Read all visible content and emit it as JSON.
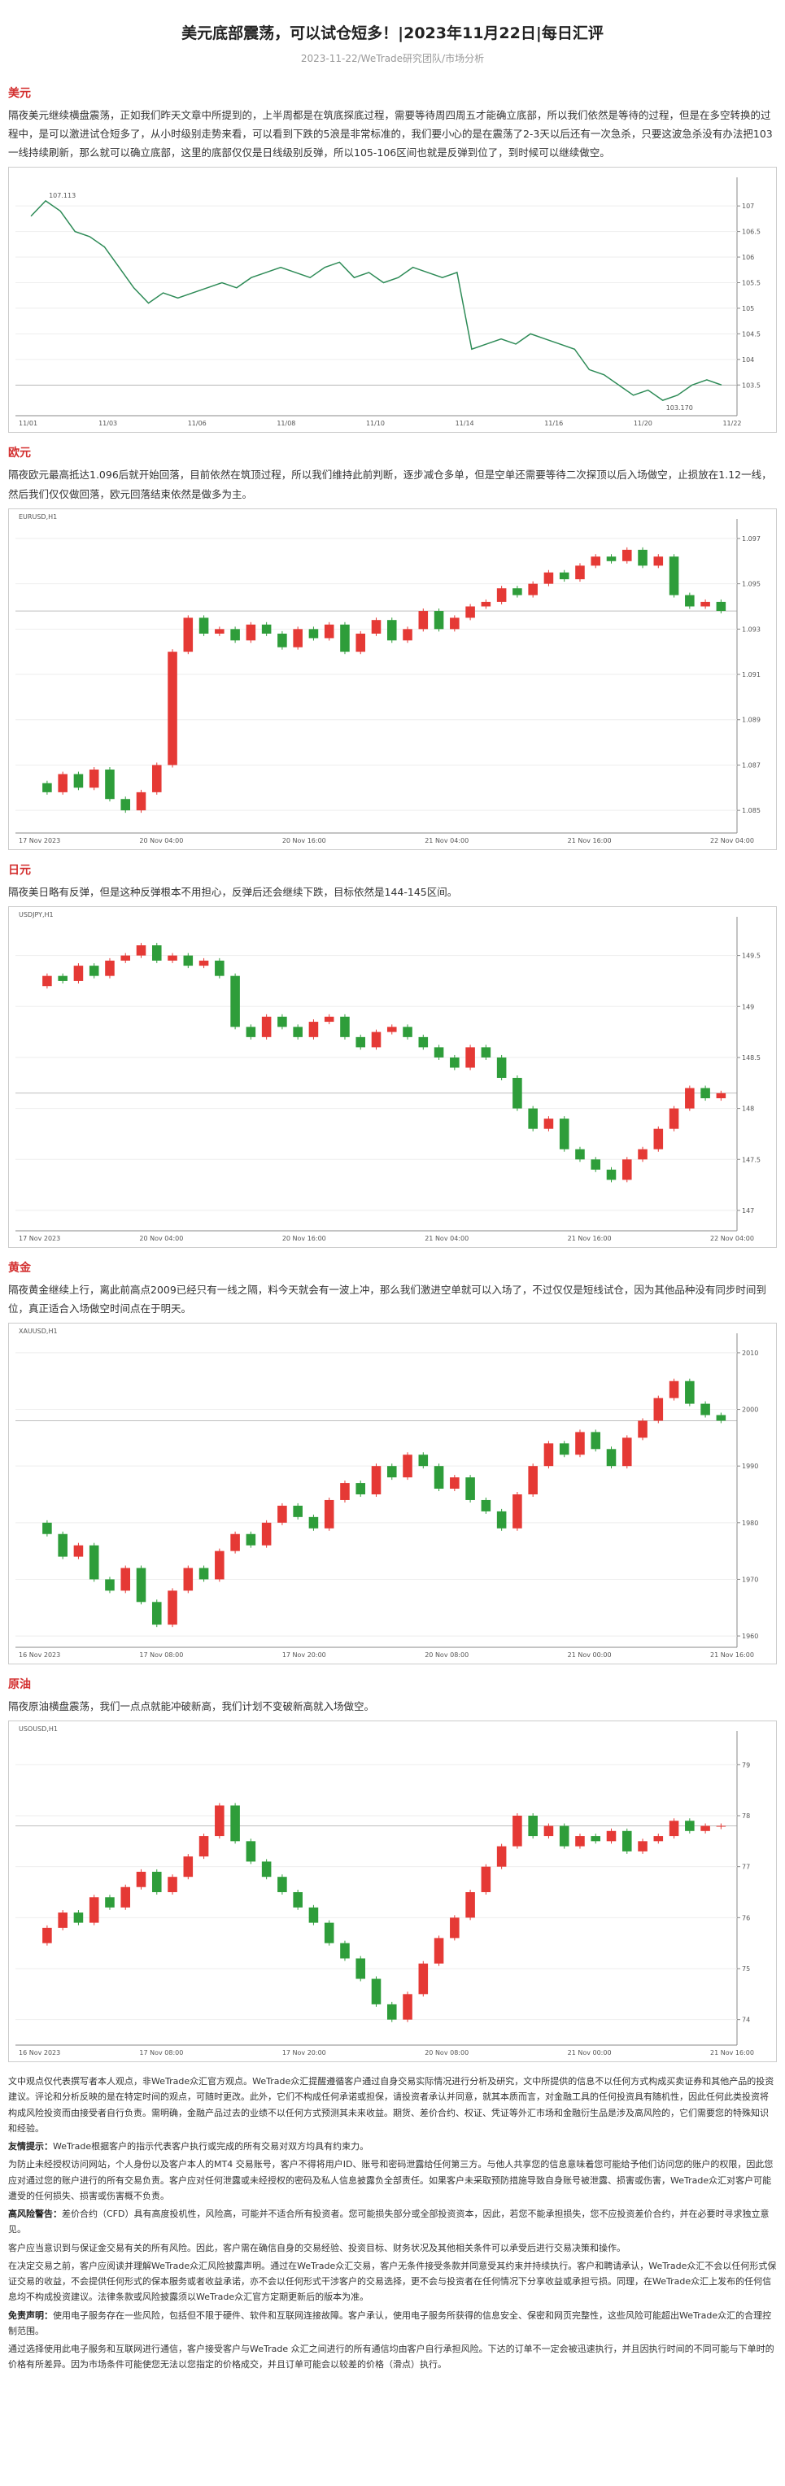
{
  "header": {
    "title": "美元底部震荡，可以试仓短多！|2023年11月22日|每日汇评",
    "subtitle": "2023-11-22/WeTrade研究团队/市场分析"
  },
  "sections": [
    {
      "heading": "美元",
      "text": "隔夜美元继续横盘震荡，正如我们昨天文章中所提到的，上半周都是在筑底探底过程，需要等待周四周五才能确立底部，所以我们依然是等待的过程，但是在多空转换的过程中，是可以激进试仓短多了，从小时级别走势来看，可以看到下跌的5浪是非常标准的，我们要小心的是在震荡了2-3天以后还有一次急杀，只要这波急杀没有办法把103一线持续刷新，那么就可以确立底部，这里的底部仅仅是日线级别反弹，所以105-106区间也就是反弹到位了，到时候可以继续做空。",
      "chart": {
        "type": "line",
        "color": "#2e8b57",
        "high_label": "107.113",
        "low_label": "103.170",
        "values": [
          106.8,
          107.1,
          106.9,
          106.5,
          106.4,
          106.2,
          105.8,
          105.4,
          105.1,
          105.3,
          105.2,
          105.3,
          105.4,
          105.5,
          105.4,
          105.6,
          105.7,
          105.8,
          105.7,
          105.6,
          105.8,
          105.9,
          105.6,
          105.7,
          105.5,
          105.6,
          105.8,
          105.7,
          105.6,
          105.7,
          104.2,
          104.3,
          104.4,
          104.3,
          104.5,
          104.4,
          104.3,
          104.2,
          103.8,
          103.7,
          103.5,
          103.3,
          103.4,
          103.2,
          103.3,
          103.5,
          103.6,
          103.5
        ],
        "ylim": [
          102.9,
          107.4
        ],
        "yticks": [
          103.5,
          104,
          104.5,
          105,
          105.5,
          106,
          106.5,
          107
        ],
        "xlabels": [
          "11/01",
          "11/03",
          "11/06",
          "11/08",
          "11/10",
          "11/14",
          "11/16",
          "11/20",
          "11/22"
        ]
      }
    },
    {
      "heading": "欧元",
      "text": "隔夜欧元最高抵达1.096后就开始回落，目前依然在筑顶过程，所以我们维持此前判断，逐步减仓多单，但是空单还需要等待二次探顶以后入场做空，止损放在1.12一线，然后我们仅仅做回落，欧元回落结束依然是做多为主。",
      "chart": {
        "type": "candlestick",
        "label": "EURUSD,H1",
        "values": [
          1.0862,
          1.0858,
          1.0866,
          1.086,
          1.0868,
          1.0855,
          1.085,
          1.0858,
          1.087,
          1.092,
          1.0935,
          1.0928,
          1.093,
          1.0925,
          1.0932,
          1.0928,
          1.0922,
          1.093,
          1.0926,
          1.0932,
          1.092,
          1.0928,
          1.0934,
          1.0925,
          1.093,
          1.0938,
          1.093,
          1.0935,
          1.094,
          1.0942,
          1.0948,
          1.0945,
          1.095,
          1.0955,
          1.0952,
          1.0958,
          1.0962,
          1.096,
          1.0965,
          1.0958,
          1.0962,
          1.0945,
          1.094,
          1.0942,
          1.0938
        ],
        "ylim": [
          1.084,
          1.0975
        ],
        "yticks": [
          1.085,
          1.087,
          1.089,
          1.091,
          1.093,
          1.095,
          1.097
        ],
        "xlabels": [
          "17 Nov 2023",
          "20 Nov 04:00",
          "20 Nov 16:00",
          "21 Nov 04:00",
          "21 Nov 16:00",
          "22 Nov 04:00"
        ]
      }
    },
    {
      "heading": "日元",
      "text": "隔夜美日略有反弹，但是这种反弹根本不用担心，反弹后还会继续下跌，目标依然是144-145区间。",
      "chart": {
        "type": "candlestick",
        "label": "USDJPY,H1",
        "values": [
          149.2,
          149.3,
          149.25,
          149.4,
          149.3,
          149.45,
          149.5,
          149.6,
          149.45,
          149.5,
          149.4,
          149.45,
          149.3,
          148.8,
          148.7,
          148.9,
          148.8,
          148.7,
          148.85,
          148.9,
          148.7,
          148.6,
          148.75,
          148.8,
          148.7,
          148.6,
          148.5,
          148.4,
          148.6,
          148.5,
          148.3,
          148,
          147.8,
          147.9,
          147.6,
          147.5,
          147.4,
          147.3,
          147.5,
          147.6,
          147.8,
          148,
          148.2,
          148.1,
          148.15
        ],
        "ylim": [
          146.8,
          149.8
        ],
        "yticks": [
          147,
          147.5,
          148,
          148.5,
          149,
          149.5
        ],
        "xlabels": [
          "17 Nov 2023",
          "20 Nov 04:00",
          "20 Nov 16:00",
          "21 Nov 04:00",
          "21 Nov 16:00",
          "22 Nov 04:00"
        ]
      }
    },
    {
      "heading": "黄金",
      "text": "隔夜黄金继续上行，离此前高点2009已经只有一线之隔，料今天就会有一波上冲，那么我们激进空单就可以入场了，不过仅仅是短线试仓，因为其他品种没有同步时间到位，真正适合入场做空时间点在于明天。",
      "chart": {
        "type": "candlestick",
        "label": "XAUUSD,H1",
        "values": [
          1980,
          1978,
          1974,
          1976,
          1970,
          1968,
          1972,
          1966,
          1962,
          1968,
          1972,
          1970,
          1975,
          1978,
          1976,
          1980,
          1983,
          1981,
          1979,
          1984,
          1987,
          1985,
          1990,
          1988,
          1992,
          1990,
          1986,
          1988,
          1984,
          1982,
          1979,
          1985,
          1990,
          1994,
          1992,
          1996,
          1993,
          1990,
          1995,
          1998,
          2002,
          2005,
          2001,
          1999,
          1998
        ],
        "ylim": [
          1958,
          2012
        ],
        "yticks": [
          1960,
          1970,
          1980,
          1990,
          2000,
          2010
        ],
        "xlabels": [
          "16 Nov 2023",
          "17 Nov 08:00",
          "17 Nov 20:00",
          "20 Nov 08:00",
          "21 Nov 00:00",
          "21 Nov 16:00"
        ]
      }
    },
    {
      "heading": "原油",
      "text": "隔夜原油横盘震荡，我们一点点就能冲破新高，我们计划不变破新高就入场做空。",
      "chart": {
        "type": "candlestick",
        "label": "USOUSD,H1",
        "values": [
          75.5,
          75.8,
          76.1,
          75.9,
          76.4,
          76.2,
          76.6,
          76.9,
          76.5,
          76.8,
          77.2,
          77.6,
          78.2,
          77.5,
          77.1,
          76.8,
          76.5,
          76.2,
          75.9,
          75.5,
          75.2,
          74.8,
          74.3,
          74,
          74.5,
          75.1,
          75.6,
          76,
          76.5,
          77,
          77.4,
          78,
          77.6,
          77.8,
          77.4,
          77.6,
          77.5,
          77.7,
          77.3,
          77.5,
          77.6,
          77.9,
          77.7,
          77.8,
          77.8
        ],
        "ylim": [
          73.5,
          79.5
        ],
        "yticks": [
          74,
          75,
          76,
          77,
          78,
          79
        ],
        "xlabels": [
          "16 Nov 2023",
          "17 Nov 08:00",
          "17 Nov 20:00",
          "20 Nov 08:00",
          "21 Nov 00:00",
          "21 Nov 16:00"
        ]
      }
    }
  ],
  "disclaimer": [
    {
      "text": "文中观点仅代表撰写者本人观点，非WeTrade众汇官方观点。WeTrade众汇提醒遵循客户通过自身交易实际情况进行分析及研究，文中所提供的信息不以任何方式构成买卖证券和其他产品的投资建议。评论和分析反映的是在特定时间的观点，可随时更改。此外，它们不构成任何承诺或担保，请投资者承认并同意，就其本质而言，对金融工具的任何投资具有随机性，因此任何此类投资将构成风险投资而由接受者自行负责。需明确，金融产品过去的业绩不以任何方式预测其未来收益。期货、差价合约、权证、凭证等外汇市场和金融衍生品是涉及高风险的，它们需要您的特殊知识和经验。"
    },
    {
      "label": "友情提示：",
      "text": "WeTrade根据客户的指示代表客户执行或完成的所有交易对双方均具有约束力。"
    },
    {
      "text": "为防止未经授权访问网站，个人身份以及客户本人的MT4 交易账号，客户不得将用户ID、账号和密码泄露给任何第三方。与他人共享您的信息意味着您可能给予他们访问您的账户的权限，因此您应对通过您的账户进行的所有交易负责。客户应对任何泄露或未经授权的密码及私人信息披露负全部责任。如果客户未采取预防措施导致自身账号被泄露、损害或伤害，WeTrade众汇对客户可能遭受的任何损失、损害或伤害概不负责。"
    },
    {
      "label": "高风险警告：",
      "text": "差价合约（CFD）具有高度投机性，风险高，可能并不适合所有投资者。您可能损失部分或全部投资资本，因此，若您不能承担损失，您不应投资差价合约，并在必要时寻求独立意见。"
    },
    {
      "text": "客户应当意识到与保证金交易有关的所有风险。因此，客户需在确信自身的交易经验、投资目标、财务状况及其他相关条件可以承受后进行交易决策和操作。"
    },
    {
      "text": "在决定交易之前，客户应阅读并理解WeTrade众汇风险披露声明。通过在WeTrade众汇交易，客户无条件接受条款并同意受其约束并持续执行。客户和聘请承认，WeTrade众汇不会以任何形式保证交易的收益，不会提供任何形式的保本服务或者收益承诺，亦不会以任何形式干涉客户的交易选择，更不会与投资者在任何情况下分享收益或承担亏损。同理，在WeTrade众汇上发布的任何信息均不构成投资建议。法律条款或风险披露须以WeTrade众汇官方定期更新后的版本为准。"
    },
    {
      "label": "免责声明：",
      "text": "使用电子服务存在一些风险，包括但不限于硬件、软件和互联网连接故障。客户承认，使用电子服务所获得的信息安全、保密和网页完整性，这些风险可能超出WeTrade众汇的合理控制范围。"
    },
    {
      "text": "通过选择使用此电子服务和互联网进行通信，客户接受客户与WeTrade 众汇之间进行的所有通信均由客户自行承担风险。下达的订单不一定会被迅速执行，并且因执行时间的不同可能与下单时的价格有所差异。因为市场条件可能使您无法以您指定的价格成交，并且订单可能会以较差的价格（滑点）执行。"
    }
  ]
}
